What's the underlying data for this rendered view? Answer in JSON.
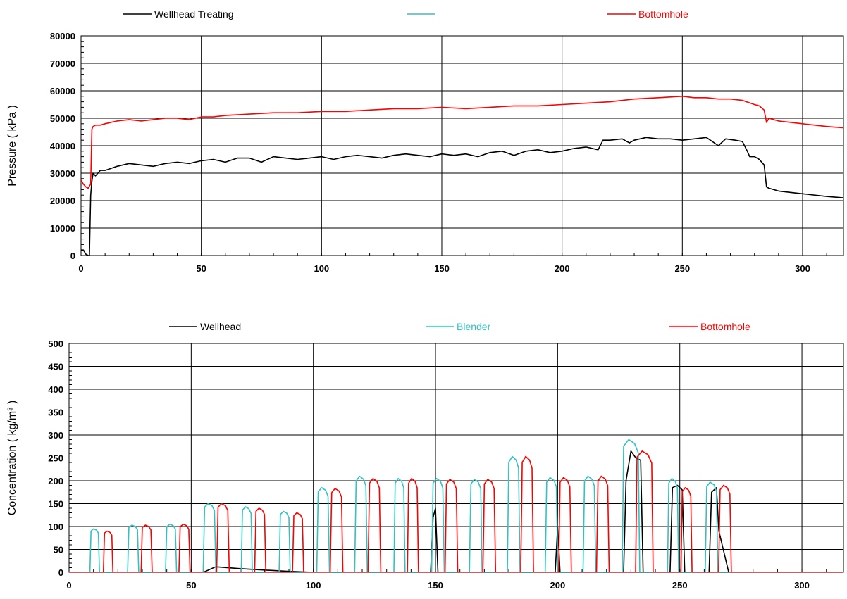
{
  "chart_data": [
    {
      "type": "line",
      "title": "",
      "xlabel": "",
      "ylabel": "Pressure ( kPa )",
      "xlim": [
        0,
        317
      ],
      "ylim": [
        0,
        80000
      ],
      "xticks": [
        0,
        50,
        100,
        150,
        200,
        250,
        300
      ],
      "yticks": [
        0,
        10000,
        20000,
        30000,
        40000,
        50000,
        60000,
        70000,
        80000
      ],
      "grid": true,
      "legend_position": "top",
      "series": [
        {
          "name": "Wellhead Treating",
          "color": "#000000",
          "x": [
            0,
            1,
            2,
            3,
            3.5,
            4,
            4.5,
            5,
            6,
            8,
            10,
            15,
            20,
            25,
            30,
            35,
            40,
            45,
            50,
            55,
            60,
            65,
            70,
            75,
            80,
            85,
            90,
            95,
            100,
            105,
            110,
            115,
            120,
            125,
            130,
            135,
            140,
            145,
            150,
            155,
            160,
            165,
            170,
            175,
            180,
            185,
            190,
            195,
            200,
            205,
            210,
            215,
            217,
            220,
            225,
            228,
            230,
            235,
            240,
            245,
            250,
            255,
            260,
            265,
            268,
            272,
            275,
            277,
            278,
            280,
            282,
            284,
            285,
            286,
            290,
            300,
            310,
            317
          ],
          "values": [
            2000,
            2000,
            500,
            0,
            0,
            22000,
            27000,
            30000,
            29000,
            31000,
            31000,
            32500,
            33500,
            33000,
            32500,
            33500,
            34000,
            33500,
            34500,
            35000,
            34000,
            35500,
            35500,
            34000,
            36000,
            35500,
            35000,
            35500,
            36000,
            35000,
            36000,
            36500,
            36000,
            35500,
            36500,
            37000,
            36500,
            36000,
            37000,
            36500,
            37000,
            36000,
            37500,
            38000,
            36500,
            38000,
            38500,
            37500,
            38000,
            39000,
            39500,
            38500,
            42000,
            42000,
            42500,
            41000,
            42000,
            43000,
            42500,
            42500,
            42000,
            42500,
            43000,
            40000,
            42500,
            42000,
            41500,
            38000,
            36000,
            36000,
            35000,
            33000,
            25000,
            24500,
            23500,
            22500,
            21500,
            21000
          ]
        },
        {
          "name": "",
          "color": "#33c2c2",
          "x": [],
          "values": []
        },
        {
          "name": "Bottomhole",
          "color": "#ff0000",
          "x": [
            0,
            1,
            2,
            3,
            4,
            4.5,
            5,
            6,
            8,
            10,
            15,
            20,
            25,
            30,
            35,
            40,
            45,
            50,
            55,
            60,
            70,
            80,
            90,
            100,
            110,
            120,
            130,
            140,
            150,
            160,
            170,
            180,
            190,
            200,
            210,
            220,
            230,
            240,
            250,
            255,
            260,
            265,
            270,
            275,
            280,
            282,
            284,
            285,
            286,
            290,
            300,
            310,
            317
          ],
          "values": [
            27500,
            26000,
            25000,
            24500,
            26000,
            46000,
            47000,
            47500,
            47500,
            48000,
            49000,
            49500,
            49000,
            49500,
            50000,
            50000,
            49500,
            50500,
            50500,
            51000,
            51500,
            52000,
            52000,
            52500,
            52500,
            53000,
            53500,
            53500,
            54000,
            53500,
            54000,
            54500,
            54500,
            55000,
            55500,
            56000,
            57000,
            57500,
            58000,
            57500,
            57500,
            57000,
            57000,
            56500,
            55000,
            54500,
            53000,
            48500,
            50000,
            49000,
            48000,
            47000,
            46500
          ]
        }
      ]
    },
    {
      "type": "line",
      "title": "",
      "xlabel": "",
      "ylabel": "Concentration ( kg/m³ )",
      "xlim": [
        0,
        317
      ],
      "ylim": [
        0,
        500
      ],
      "xticks": [
        0,
        50,
        100,
        150,
        200,
        250,
        300
      ],
      "yticks": [
        0,
        50,
        100,
        150,
        200,
        250,
        300,
        350,
        400,
        450,
        500
      ],
      "grid": true,
      "legend_position": "top",
      "series": [
        {
          "name": "Wellhead",
          "color": "#000000",
          "x": [
            0,
            55,
            60,
            70,
            80,
            90,
            100,
            148,
            149,
            150,
            151,
            199,
            200,
            201,
            227,
            228,
            230,
            232,
            234,
            235,
            246,
            247,
            249,
            251,
            252,
            262,
            263,
            265,
            266,
            270,
            317
          ],
          "values": [
            0,
            0,
            12,
            8,
            5,
            2,
            0,
            0,
            120,
            140,
            0,
            0,
            100,
            0,
            0,
            200,
            265,
            250,
            245,
            0,
            0,
            185,
            190,
            180,
            0,
            0,
            175,
            185,
            90,
            0,
            0
          ]
        },
        {
          "name": "Blender",
          "color": "#33c2c2",
          "pulses": [
            {
              "start": 9,
              "end": 12,
              "level": 95
            },
            {
              "start": 24.5,
              "end": 28,
              "level": 103
            },
            {
              "start": 40,
              "end": 43.5,
              "level": 105
            },
            {
              "start": 55.5,
              "end": 59.5,
              "level": 150
            },
            {
              "start": 71,
              "end": 74.5,
              "level": 143
            },
            {
              "start": 86.5,
              "end": 90,
              "level": 133
            },
            {
              "start": 102,
              "end": 106,
              "level": 185
            },
            {
              "start": 117.5,
              "end": 121.5,
              "level": 210
            },
            {
              "start": 133.5,
              "end": 137,
              "level": 205
            },
            {
              "start": 149,
              "end": 153,
              "level": 205
            },
            {
              "start": 164.5,
              "end": 168.5,
              "level": 203
            },
            {
              "start": 180,
              "end": 184,
              "level": 253
            },
            {
              "start": 195.5,
              "end": 199.5,
              "level": 207
            },
            {
              "start": 211,
              "end": 215,
              "level": 210
            },
            {
              "start": 227,
              "end": 233,
              "level": 290
            },
            {
              "start": 245.5,
              "end": 249,
              "level": 205
            },
            {
              "start": 261,
              "end": 265,
              "level": 197
            }
          ]
        },
        {
          "name": "Bottomhole",
          "color": "#ff0000",
          "pulses": [
            {
              "start": 14.5,
              "end": 17.5,
              "level": 90
            },
            {
              "start": 30,
              "end": 33.5,
              "level": 103
            },
            {
              "start": 45.5,
              "end": 49,
              "level": 105
            },
            {
              "start": 61,
              "end": 65,
              "level": 150
            },
            {
              "start": 76.5,
              "end": 80,
              "level": 140
            },
            {
              "start": 92,
              "end": 95.5,
              "level": 130
            },
            {
              "start": 107.5,
              "end": 111.5,
              "level": 183
            },
            {
              "start": 123,
              "end": 127,
              "level": 205
            },
            {
              "start": 139,
              "end": 142.5,
              "level": 205
            },
            {
              "start": 154.5,
              "end": 158.5,
              "level": 203
            },
            {
              "start": 170,
              "end": 174,
              "level": 203
            },
            {
              "start": 185.5,
              "end": 189.5,
              "level": 253
            },
            {
              "start": 201,
              "end": 205,
              "level": 207
            },
            {
              "start": 216.5,
              "end": 220.5,
              "level": 210
            },
            {
              "start": 232.5,
              "end": 238.5,
              "level": 265
            },
            {
              "start": 251,
              "end": 254.5,
              "level": 185
            },
            {
              "start": 266.5,
              "end": 270.5,
              "level": 190
            }
          ]
        }
      ]
    }
  ]
}
